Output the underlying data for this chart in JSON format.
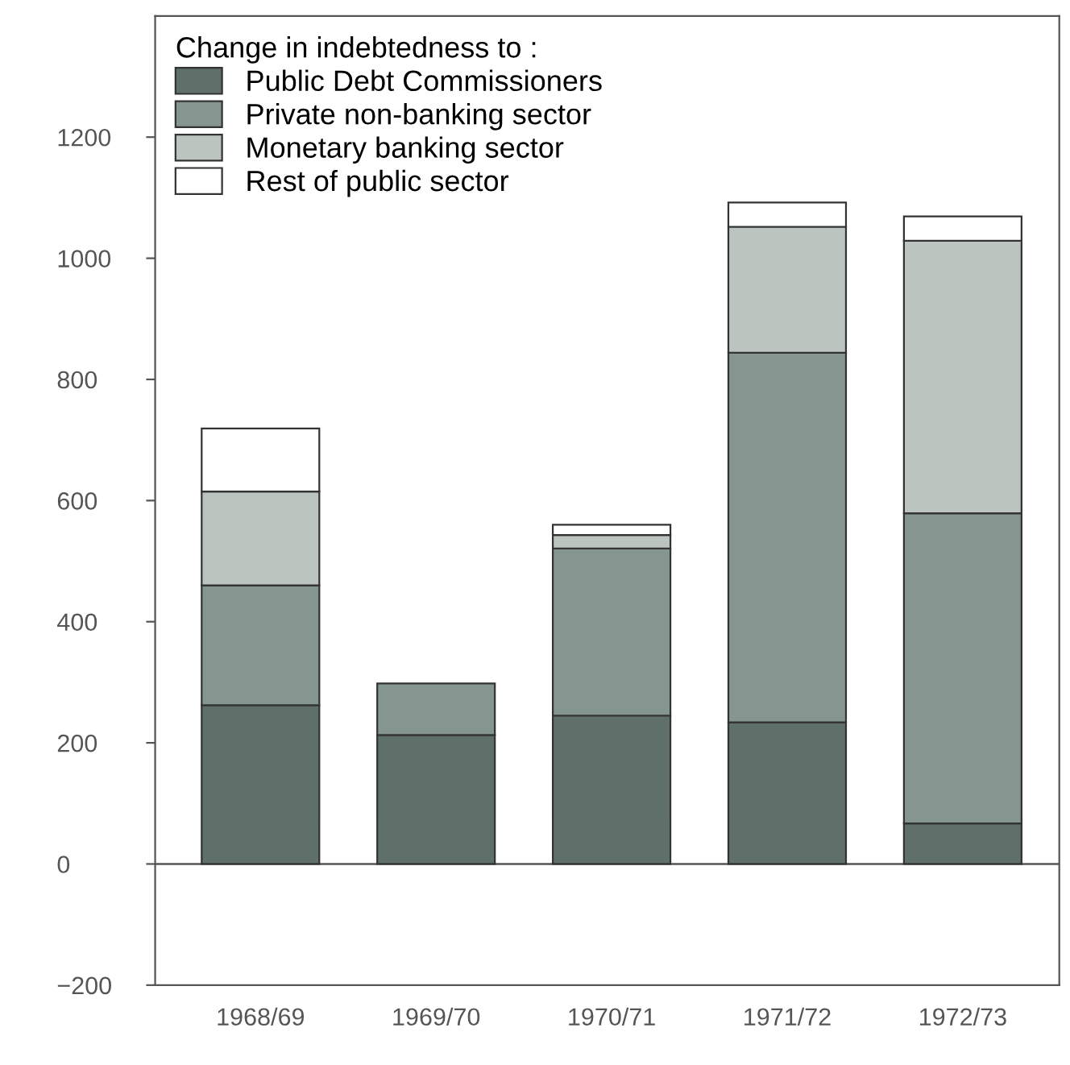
{
  "chart_data": {
    "type": "bar",
    "stacked": true,
    "legend_title": "Change in indebtedness to :",
    "legend": "top left",
    "categories": [
      "1968/69",
      "1969/70",
      "1970/71",
      "1971/72",
      "1972/73"
    ],
    "series": [
      {
        "name": "Public Debt Commissioners",
        "color": "#5f6f69",
        "values": [
          262,
          213,
          245,
          234,
          67
        ]
      },
      {
        "name": "Private non-banking sector",
        "color": "#859690",
        "values": [
          198,
          85,
          276,
          610,
          512
        ]
      },
      {
        "name": "Monetary banking sector",
        "color": "#bcc4c0",
        "values": [
          155,
          null,
          22,
          208,
          450
        ]
      },
      {
        "name": "Rest of public sector",
        "color": "#ffffff",
        "values": [
          104,
          null,
          17,
          40,
          40
        ]
      }
    ],
    "ylim": [
      -200,
      1400
    ],
    "yticks": [
      {
        "value": -200,
        "label": "−200"
      },
      0,
      200,
      400,
      600,
      800,
      1000,
      1200
    ],
    "ref_lines": [
      {
        "axis": "y",
        "value": 0,
        "label": null,
        "color": "#555555"
      }
    ],
    "grid": false
  }
}
